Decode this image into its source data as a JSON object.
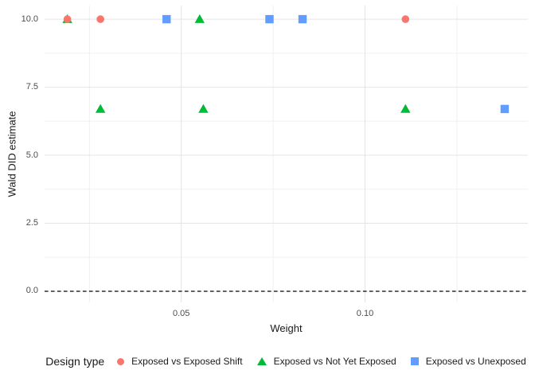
{
  "figure": {
    "background": "#FFFFFF"
  },
  "chart_data": {
    "type": "scatter",
    "title": "",
    "xlabel": "Weight",
    "ylabel": "Wald DID estimate",
    "xlim": [
      0.0128,
      0.1443
    ],
    "ylim": [
      -0.41,
      10.5
    ],
    "grid": true,
    "x_major_ticks": [
      0.05,
      0.1
    ],
    "x_major_labels": [
      "0.05",
      "0.10"
    ],
    "x_minor_ticks": [
      0.025,
      0.075,
      0.125
    ],
    "y_major_ticks": [
      0,
      2.5,
      5,
      7.5,
      10
    ],
    "y_major_labels": [
      "0.0",
      "2.5",
      "5.0",
      "7.5",
      "10.0"
    ],
    "y_minor_ticks": [
      1.25,
      3.75,
      6.25,
      8.75
    ],
    "reference_line": {
      "y": 0,
      "style": "dashed",
      "color": "#000000"
    },
    "legend_position": "bottom",
    "legend_title": "Design type",
    "series": [
      {
        "name": "Exposed vs Exposed Shift",
        "marker": "circle",
        "color": "#F8766D",
        "points": [
          [
            0.019,
            10.0
          ],
          [
            0.028,
            10.0
          ],
          [
            0.111,
            10.0
          ]
        ]
      },
      {
        "name": "Exposed vs Not Yet Exposed",
        "marker": "triangle",
        "color": "#00BA38",
        "points": [
          [
            0.019,
            10.0
          ],
          [
            0.055,
            10.0
          ],
          [
            0.028,
            6.7
          ],
          [
            0.056,
            6.7
          ],
          [
            0.111,
            6.7
          ]
        ]
      },
      {
        "name": "Exposed vs Unexposed",
        "marker": "square",
        "color": "#619CFF",
        "points": [
          [
            0.046,
            10.0
          ],
          [
            0.074,
            10.0
          ],
          [
            0.083,
            10.0
          ],
          [
            0.138,
            6.7
          ]
        ]
      }
    ],
    "draw_order": [
      1,
      0,
      2
    ],
    "colors": {
      "grid_major": "#E4E4E4",
      "grid_minor": "#F0F0F0",
      "tick_label": "#4D4D4D",
      "title_text": "#1A1A1A"
    }
  }
}
